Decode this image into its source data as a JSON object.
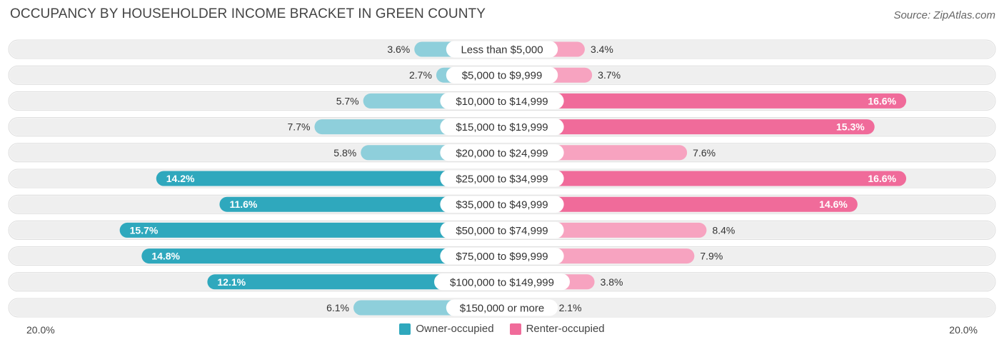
{
  "title": "OCCUPANCY BY HOUSEHOLDER INCOME BRACKET IN GREEN COUNTY",
  "source": "Source: ZipAtlas.com",
  "colors": {
    "owner_dark": "#2fa8bd",
    "owner_light": "#8ecfdb",
    "renter_dark": "#f06b9a",
    "renter_light": "#f7a3c0",
    "row_bg": "#efefef"
  },
  "axis": {
    "left_label": "20.0%",
    "right_label": "20.0%"
  },
  "legend": {
    "owner": "Owner-occupied",
    "renter": "Renter-occupied"
  },
  "chart_data": {
    "type": "bar",
    "orientation": "diverging-horizontal",
    "title": "OCCUPANCY BY HOUSEHOLDER INCOME BRACKET IN GREEN COUNTY",
    "xlim": [
      -20,
      20
    ],
    "categories": [
      "Less than $5,000",
      "$5,000 to $9,999",
      "$10,000 to $14,999",
      "$15,000 to $19,999",
      "$20,000 to $24,999",
      "$25,000 to $34,999",
      "$35,000 to $49,999",
      "$50,000 to $74,999",
      "$75,000 to $99,999",
      "$100,000 to $149,999",
      "$150,000 or more"
    ],
    "series": [
      {
        "name": "Owner-occupied",
        "values": [
          3.6,
          2.7,
          5.7,
          7.7,
          5.8,
          14.2,
          11.6,
          15.7,
          14.8,
          12.1,
          6.1
        ],
        "labels": [
          "3.6%",
          "2.7%",
          "5.7%",
          "7.7%",
          "5.8%",
          "14.2%",
          "11.6%",
          "15.7%",
          "14.8%",
          "12.1%",
          "6.1%"
        ]
      },
      {
        "name": "Renter-occupied",
        "values": [
          3.4,
          3.7,
          16.6,
          15.3,
          7.6,
          16.6,
          14.6,
          8.4,
          7.9,
          3.8,
          2.1
        ],
        "labels": [
          "3.4%",
          "3.7%",
          "16.6%",
          "15.3%",
          "7.6%",
          "16.6%",
          "14.6%",
          "8.4%",
          "7.9%",
          "3.8%",
          "2.1%"
        ]
      }
    ]
  }
}
